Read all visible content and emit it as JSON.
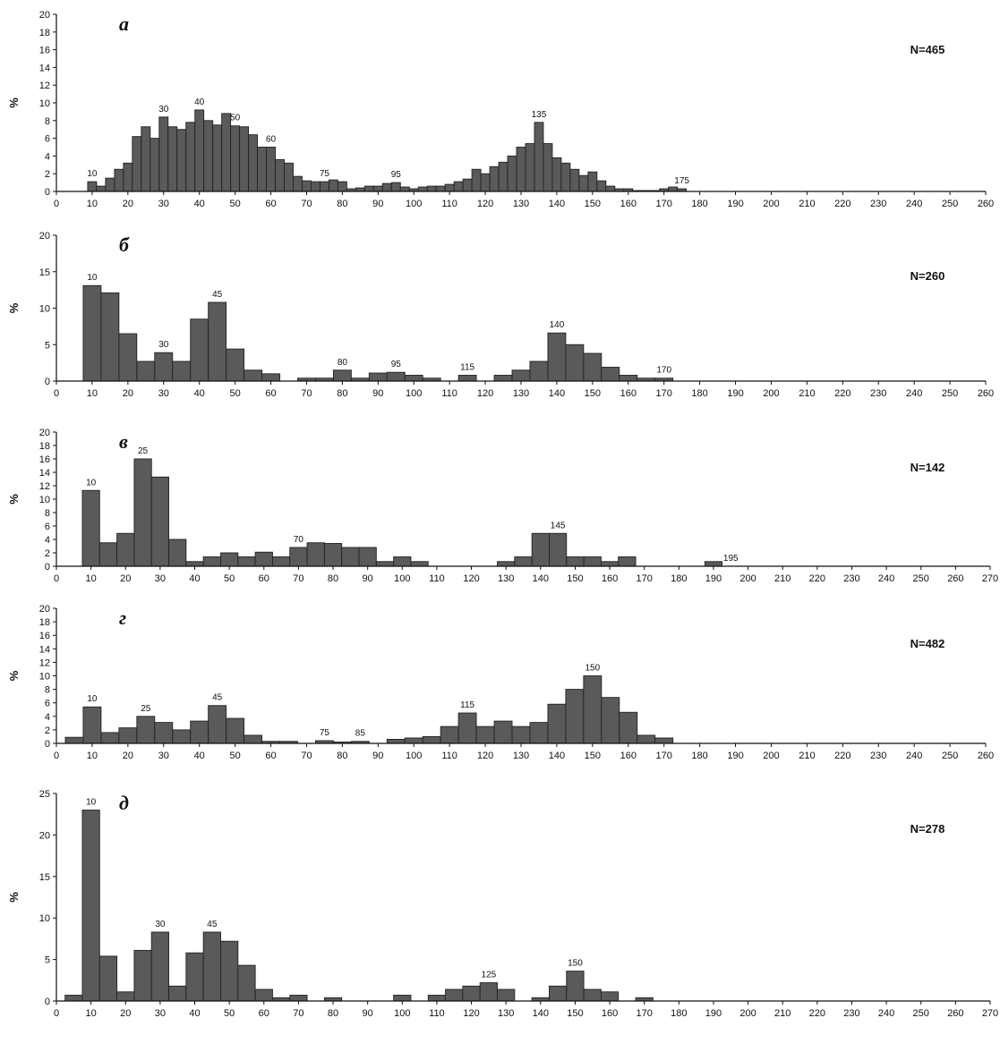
{
  "colors": {
    "bar_fill": "#5a5a5a",
    "bar_stroke": "#222222",
    "axis": "#111111",
    "text": "#111111"
  },
  "chart_data": [
    {
      "type": "bar",
      "title": "а",
      "n_label": "N=465",
      "ylabel": "%",
      "ylim": [
        0,
        20
      ],
      "y_ticks": [
        0,
        2,
        4,
        6,
        8,
        10,
        12,
        14,
        16,
        18,
        20
      ],
      "xlim": [
        0,
        260
      ],
      "x_ticks": [
        0,
        10,
        20,
        30,
        40,
        50,
        60,
        70,
        80,
        90,
        100,
        110,
        120,
        130,
        140,
        150,
        160,
        170,
        180,
        190,
        200,
        210,
        220,
        230,
        240,
        250,
        260
      ],
      "x": [
        7.5,
        10,
        12.5,
        15,
        17.5,
        20,
        22.5,
        25,
        27.5,
        30,
        32.5,
        35,
        37.5,
        40,
        42.5,
        45,
        47.5,
        50,
        52.5,
        55,
        57.5,
        60,
        62.5,
        65,
        67.5,
        70,
        72.5,
        75,
        77.5,
        80,
        82.5,
        85,
        87.5,
        90,
        92.5,
        95,
        97.5,
        100,
        102.5,
        105,
        107.5,
        110,
        112.5,
        115,
        117.5,
        120,
        122.5,
        125,
        127.5,
        130,
        132.5,
        135,
        137.5,
        140,
        142.5,
        145,
        147.5,
        150,
        152.5,
        155,
        157.5,
        160,
        162.5,
        165,
        167.5,
        170,
        172.5,
        175
      ],
      "values": [
        0,
        1.1,
        0.6,
        1.5,
        2.5,
        3.2,
        6.2,
        7.3,
        6.0,
        8.4,
        7.3,
        7.0,
        7.8,
        9.2,
        8.0,
        7.5,
        8.8,
        7.4,
        7.3,
        6.4,
        5.0,
        5.0,
        3.6,
        3.2,
        1.7,
        1.2,
        1.1,
        1.1,
        1.3,
        1.1,
        0.3,
        0.4,
        0.6,
        0.6,
        0.9,
        1.0,
        0.5,
        0.3,
        0.5,
        0.6,
        0.6,
        0.8,
        1.1,
        1.4,
        2.5,
        2.0,
        2.8,
        3.3,
        4.0,
        5.0,
        5.4,
        7.8,
        5.4,
        3.8,
        3.2,
        2.5,
        1.8,
        2.2,
        1.2,
        0.6,
        0.3,
        0.3,
        0.1,
        0.1,
        0.1,
        0.3,
        0.5,
        0.3
      ],
      "annotations": [
        {
          "x": 10,
          "text": "10"
        },
        {
          "x": 30,
          "text": "30"
        },
        {
          "x": 40,
          "text": "40"
        },
        {
          "x": 50,
          "text": "50"
        },
        {
          "x": 60,
          "text": "60"
        },
        {
          "x": 75,
          "text": "75"
        },
        {
          "x": 95,
          "text": "95"
        },
        {
          "x": 135,
          "text": "135"
        },
        {
          "x": 175,
          "text": "175"
        }
      ]
    },
    {
      "type": "bar",
      "title": "б",
      "n_label": "N=260",
      "ylabel": "%",
      "ylim": [
        0,
        20
      ],
      "y_ticks": [
        0,
        5,
        10,
        15,
        20
      ],
      "xlim": [
        0,
        260
      ],
      "x_ticks": [
        0,
        10,
        20,
        30,
        40,
        50,
        60,
        70,
        80,
        90,
        100,
        110,
        120,
        130,
        140,
        150,
        160,
        170,
        180,
        190,
        200,
        210,
        220,
        230,
        240,
        250,
        260
      ],
      "x": [
        10,
        15,
        20,
        25,
        30,
        35,
        40,
        45,
        50,
        55,
        60,
        65,
        70,
        75,
        80,
        85,
        90,
        95,
        100,
        105,
        110,
        115,
        120,
        125,
        130,
        135,
        140,
        145,
        150,
        155,
        160,
        165,
        170
      ],
      "values": [
        13.1,
        12.1,
        6.5,
        2.7,
        3.9,
        2.7,
        8.5,
        10.8,
        4.4,
        1.5,
        1.0,
        0.0,
        0.4,
        0.4,
        1.5,
        0.4,
        1.1,
        1.2,
        0.8,
        0.4,
        0.0,
        0.8,
        0.0,
        0.8,
        1.5,
        2.7,
        6.6,
        5.0,
        3.8,
        1.9,
        0.8,
        0.4,
        0.4
      ],
      "annotations": [
        {
          "x": 10,
          "text": "10"
        },
        {
          "x": 30,
          "text": "30"
        },
        {
          "x": 45,
          "text": "45"
        },
        {
          "x": 80,
          "text": "80"
        },
        {
          "x": 95,
          "text": "95"
        },
        {
          "x": 115,
          "text": "115"
        },
        {
          "x": 140,
          "text": "140"
        },
        {
          "x": 170,
          "text": "170"
        }
      ]
    },
    {
      "type": "bar",
      "title": "в",
      "n_label": "N=142",
      "ylabel": "%",
      "ylim": [
        0,
        20
      ],
      "y_ticks": [
        0,
        2,
        4,
        6,
        8,
        10,
        12,
        14,
        16,
        18,
        20
      ],
      "xlim": [
        0,
        270
      ],
      "x_ticks": [
        0,
        10,
        20,
        30,
        40,
        50,
        60,
        70,
        80,
        90,
        100,
        110,
        120,
        130,
        140,
        150,
        160,
        170,
        180,
        190,
        200,
        210,
        220,
        230,
        240,
        250,
        260,
        270
      ],
      "x": [
        10,
        15,
        20,
        25,
        30,
        35,
        40,
        45,
        50,
        55,
        60,
        65,
        70,
        75,
        80,
        85,
        90,
        95,
        100,
        105,
        110,
        115,
        120,
        125,
        130,
        135,
        140,
        145,
        150,
        155,
        160,
        165,
        170,
        175,
        180,
        185,
        190,
        195
      ],
      "values": [
        11.3,
        3.5,
        4.9,
        16.0,
        13.3,
        4.0,
        0.7,
        1.4,
        2.0,
        1.4,
        2.1,
        1.4,
        2.8,
        3.5,
        3.4,
        2.8,
        2.8,
        0.7,
        1.4,
        0.7,
        0.0,
        0.0,
        0.0,
        0.0,
        0.7,
        1.4,
        4.9,
        4.9,
        1.4,
        1.4,
        0.7,
        1.4,
        0.0,
        0.0,
        0.0,
        0.0,
        0.7,
        0.0
      ],
      "annotations": [
        {
          "x": 10,
          "text": "10"
        },
        {
          "x": 25,
          "text": "25"
        },
        {
          "x": 70,
          "text": "70"
        },
        {
          "x": 145,
          "text": "145"
        },
        {
          "x": 195,
          "text": "195"
        }
      ]
    },
    {
      "type": "bar",
      "title": "г",
      "n_label": "N=482",
      "ylabel": "%",
      "ylim": [
        0,
        20
      ],
      "y_ticks": [
        0,
        2,
        4,
        6,
        8,
        10,
        12,
        14,
        16,
        18,
        20
      ],
      "xlim": [
        0,
        260
      ],
      "x_ticks": [
        0,
        10,
        20,
        30,
        40,
        50,
        60,
        70,
        80,
        90,
        100,
        110,
        120,
        130,
        140,
        150,
        160,
        170,
        180,
        190,
        200,
        210,
        220,
        230,
        240,
        250,
        260
      ],
      "x": [
        5,
        10,
        15,
        20,
        25,
        30,
        35,
        40,
        45,
        50,
        55,
        60,
        65,
        70,
        75,
        80,
        85,
        90,
        95,
        100,
        105,
        110,
        115,
        120,
        125,
        130,
        135,
        140,
        145,
        150,
        155,
        160,
        165,
        170
      ],
      "values": [
        0.9,
        5.4,
        1.6,
        2.3,
        4.0,
        3.1,
        2.0,
        3.3,
        5.6,
        3.7,
        1.2,
        0.3,
        0.3,
        0.0,
        0.4,
        0.2,
        0.3,
        0.0,
        0.6,
        0.8,
        1.0,
        2.5,
        4.5,
        2.5,
        3.3,
        2.5,
        3.1,
        5.8,
        8.0,
        10.0,
        6.8,
        4.6,
        1.2,
        0.8
      ],
      "annotations": [
        {
          "x": 10,
          "text": "10"
        },
        {
          "x": 25,
          "text": "25"
        },
        {
          "x": 45,
          "text": "45"
        },
        {
          "x": 75,
          "text": "75"
        },
        {
          "x": 85,
          "text": "85"
        },
        {
          "x": 115,
          "text": "115"
        },
        {
          "x": 150,
          "text": "150"
        }
      ]
    },
    {
      "type": "bar",
      "title": "д",
      "n_label": "N=278",
      "ylabel": "%",
      "ylim": [
        0,
        25
      ],
      "y_ticks": [
        0,
        5,
        10,
        15,
        20,
        25
      ],
      "xlim": [
        0,
        270
      ],
      "x_ticks": [
        0,
        10,
        20,
        30,
        40,
        50,
        60,
        70,
        80,
        90,
        100,
        110,
        120,
        130,
        140,
        150,
        160,
        170,
        180,
        190,
        200,
        210,
        220,
        230,
        240,
        250,
        260,
        270
      ],
      "x": [
        5,
        10,
        15,
        20,
        25,
        30,
        35,
        40,
        45,
        50,
        55,
        60,
        65,
        70,
        75,
        80,
        85,
        90,
        95,
        100,
        105,
        110,
        115,
        120,
        125,
        130,
        135,
        140,
        145,
        150,
        155,
        160,
        165,
        170,
        175
      ],
      "values": [
        0.7,
        23.0,
        5.4,
        1.1,
        6.1,
        8.3,
        1.8,
        5.8,
        8.3,
        7.2,
        4.3,
        1.4,
        0.4,
        0.7,
        0.0,
        0.4,
        0.0,
        0.0,
        0.0,
        0.7,
        0.0,
        0.7,
        1.4,
        1.8,
        2.2,
        1.4,
        0.0,
        0.4,
        1.8,
        3.6,
        1.4,
        1.1,
        0.0,
        0.4,
        0.0
      ],
      "annotations": [
        {
          "x": 10,
          "text": "10"
        },
        {
          "x": 30,
          "text": "30"
        },
        {
          "x": 45,
          "text": "45"
        },
        {
          "x": 125,
          "text": "125"
        },
        {
          "x": 150,
          "text": "150"
        }
      ]
    }
  ]
}
